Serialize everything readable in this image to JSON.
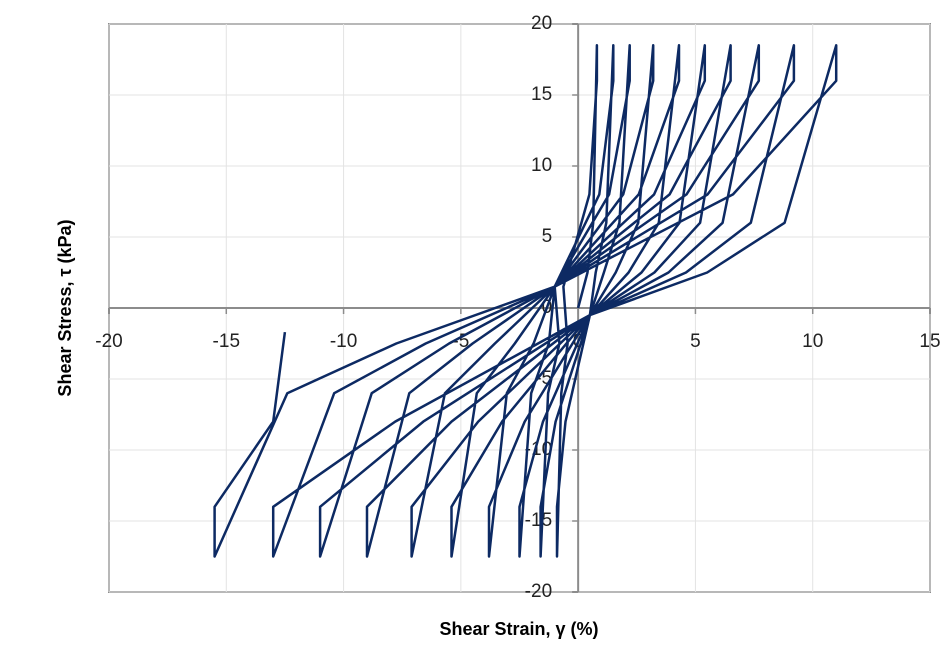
{
  "chart_data": {
    "type": "line",
    "xlabel": "Shear Strain, γ (%)",
    "ylabel": "Shear Stress, τ (kPa)",
    "xlim": [
      -20,
      15
    ],
    "xticks": [
      -20,
      -15,
      -10,
      -5,
      0,
      5,
      10,
      15
    ],
    "ylim": [
      -20,
      20
    ],
    "yticks": [
      -20,
      -15,
      -10,
      -5,
      0,
      5,
      10,
      15,
      20
    ],
    "grid": true,
    "series": [
      {
        "color": "#0d2a63",
        "x": [
          0,
          0.4,
          0.64,
          0.8,
          0.8,
          0.48,
          -0.63,
          -0.45,
          -0.72,
          -0.9,
          -0.9,
          -0.54,
          0.5,
          0.75,
          1.2,
          1.5,
          1.5,
          0.9,
          -1,
          -0.8,
          -1.28,
          -1.6,
          -1.6,
          -0.96,
          0.5,
          1.1,
          1.76,
          2.2,
          2.2,
          1.32,
          -1,
          -1.25,
          -2,
          -2.5,
          -2.5,
          -1.5,
          0.5,
          1.6,
          2.56,
          3.2,
          3.2,
          1.92,
          -1,
          -1.9,
          -3.04,
          -3.8,
          -3.8,
          -2.28,
          0.5,
          2.15,
          3.44,
          4.3,
          4.3,
          2.58,
          -1,
          -2.7,
          -4.32,
          -5.4,
          -5.4,
          -3.24,
          0.5,
          2.7,
          4.32,
          5.4,
          5.4,
          3.24,
          -1,
          -3.55,
          -5.68,
          -7.1,
          -7.1,
          -4.26,
          0.5,
          3.25,
          5.2,
          6.5,
          6.5,
          3.9,
          -1,
          -4.5,
          -7.2,
          -9,
          -9,
          -5.4,
          0.5,
          3.85,
          6.16,
          7.7,
          7.7,
          4.62,
          -1,
          -5.5,
          -8.8,
          -11,
          -11,
          -6.6,
          0.5,
          4.6,
          7.36,
          9.2,
          9.2,
          5.52,
          -1,
          -6.5,
          -10.4,
          -13,
          -13,
          -7.8,
          0.5,
          5.5,
          8.8,
          11,
          11,
          6.6,
          -1,
          -7.75,
          -12.4,
          -15.5,
          -15.5,
          -13,
          -12.5
        ],
        "values": [
          0,
          2.5,
          6,
          18.5,
          16,
          8,
          1.5,
          -2.5,
          -6,
          -17.5,
          -14,
          -8,
          -0.5,
          2.5,
          6,
          18.5,
          16,
          8,
          1.5,
          -2.5,
          -6,
          -17.5,
          -14,
          -8,
          -0.5,
          2.5,
          6,
          18.5,
          16,
          8,
          1.5,
          -2.5,
          -6,
          -17.5,
          -14,
          -8,
          -0.5,
          2.5,
          6,
          18.5,
          16,
          8,
          1.5,
          -2.5,
          -6,
          -17.5,
          -14,
          -8,
          -0.5,
          2.5,
          6,
          18.5,
          16,
          8,
          1.5,
          -2.5,
          -6,
          -17.5,
          -14,
          -8,
          -0.5,
          2.5,
          6,
          18.5,
          16,
          8,
          1.5,
          -2.5,
          -6,
          -17.5,
          -14,
          -8,
          -0.5,
          2.5,
          6,
          18.5,
          16,
          8,
          1.5,
          -2.5,
          -6,
          -17.5,
          -14,
          -8,
          -0.5,
          2.5,
          6,
          18.5,
          16,
          8,
          1.5,
          -2.5,
          -6,
          -17.5,
          -14,
          -8,
          -0.5,
          2.5,
          6,
          18.5,
          16,
          8,
          1.5,
          -2.5,
          -6,
          -17.5,
          -14,
          -8,
          -0.5,
          2.5,
          6,
          18.5,
          16,
          8,
          1.5,
          -2.5,
          -6,
          -17.5,
          -14,
          -8,
          -1.7
        ]
      }
    ]
  }
}
